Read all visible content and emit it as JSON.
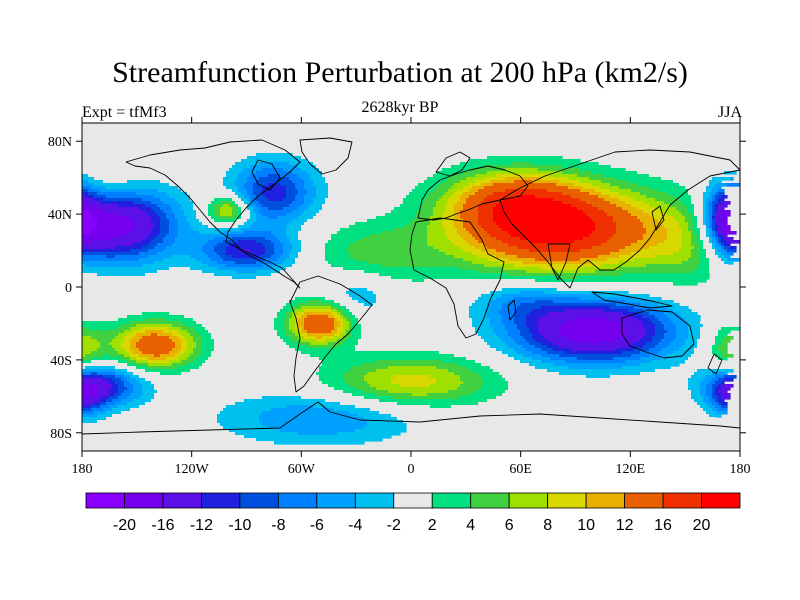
{
  "title": "Streamfunction Perturbation at 200 hPa (km2/s)",
  "subtitle_left": "Expt = tfMf3",
  "subtitle_center": "2628kyr BP",
  "subtitle_right": "JJA",
  "map": {
    "lon_range": [
      -180,
      180
    ],
    "lat_range": [
      -90,
      90
    ],
    "x_ticks": [
      {
        "lon": -180,
        "label": "180"
      },
      {
        "lon": -120,
        "label": "120W"
      },
      {
        "lon": -60,
        "label": "60W"
      },
      {
        "lon": 0,
        "label": "0"
      },
      {
        "lon": 60,
        "label": "60E"
      },
      {
        "lon": 120,
        "label": "120E"
      },
      {
        "lon": 180,
        "label": "180"
      }
    ],
    "y_ticks": [
      {
        "lat": 80,
        "label": "80N"
      },
      {
        "lat": 40,
        "label": "40N"
      },
      {
        "lat": 0,
        "label": "0"
      },
      {
        "lat": -40,
        "label": "40S"
      },
      {
        "lat": -80,
        "label": "80S"
      }
    ],
    "centers": [
      {
        "lon": 80,
        "lat": 32,
        "value": 22,
        "sx": 38,
        "sy": 16
      },
      {
        "lon": 55,
        "lat": 48,
        "value": 10,
        "sx": 25,
        "sy": 12
      },
      {
        "lon": -50,
        "lat": -20,
        "value": 16,
        "sx": 12,
        "sy": 8
      },
      {
        "lon": -140,
        "lat": -32,
        "value": 15,
        "sx": 16,
        "sy": 9
      },
      {
        "lon": -100,
        "lat": 42,
        "value": 10,
        "sx": 8,
        "sy": 6
      },
      {
        "lon": 0,
        "lat": -52,
        "value": 9,
        "sx": 32,
        "sy": 10
      },
      {
        "lon": -20,
        "lat": 18,
        "value": 5,
        "sx": 26,
        "sy": 12
      },
      {
        "lon": 155,
        "lat": 25,
        "value": 6,
        "sx": 20,
        "sy": 16
      },
      {
        "lon": -170,
        "lat": 50,
        "value": 5,
        "sx": 18,
        "sy": 14
      },
      {
        "lon": 178,
        "lat": -34,
        "value": 8,
        "sx": 10,
        "sy": 10
      },
      {
        "lon": -162,
        "lat": 35,
        "value": -20,
        "sx": 22,
        "sy": 14
      },
      {
        "lon": 175,
        "lat": 38,
        "value": -16,
        "sx": 10,
        "sy": 14
      },
      {
        "lon": -75,
        "lat": 52,
        "value": -11,
        "sx": 16,
        "sy": 12
      },
      {
        "lon": -90,
        "lat": 20,
        "value": -12,
        "sx": 18,
        "sy": 8
      },
      {
        "lon": 100,
        "lat": -24,
        "value": -19,
        "sx": 30,
        "sy": 12
      },
      {
        "lon": -50,
        "lat": -72,
        "value": -6,
        "sx": 38,
        "sy": 10
      },
      {
        "lon": -172,
        "lat": -54,
        "value": -12,
        "sx": 18,
        "sy": 8
      },
      {
        "lon": 178,
        "lat": -60,
        "value": -10,
        "sx": 10,
        "sy": 8
      },
      {
        "lon": 60,
        "lat": -8,
        "value": -5,
        "sx": 18,
        "sy": 8
      },
      {
        "lon": -30,
        "lat": -4,
        "value": -4,
        "sx": 14,
        "sy": 10
      }
    ]
  },
  "colorbar": {
    "colors": [
      "#8a00ff",
      "#7400ef",
      "#5c10e8",
      "#2020e0",
      "#0050e0",
      "#0080ff",
      "#00a0ff",
      "#00c0f0",
      "#e8e8e8",
      "#00e080",
      "#40d040",
      "#a0e000",
      "#d8d800",
      "#e8b000",
      "#e86000",
      "#f03000",
      "#ff0000"
    ],
    "labels": [
      "-20",
      "-16",
      "-12",
      "-10",
      "-8",
      "-6",
      "-4",
      "-2",
      "2",
      "4",
      "6",
      "8",
      "10",
      "12",
      "16",
      "20"
    ],
    "levels": [
      -20,
      -16,
      -12,
      -10,
      -8,
      -6,
      -4,
      -2,
      2,
      4,
      6,
      8,
      10,
      12,
      16,
      20
    ]
  }
}
